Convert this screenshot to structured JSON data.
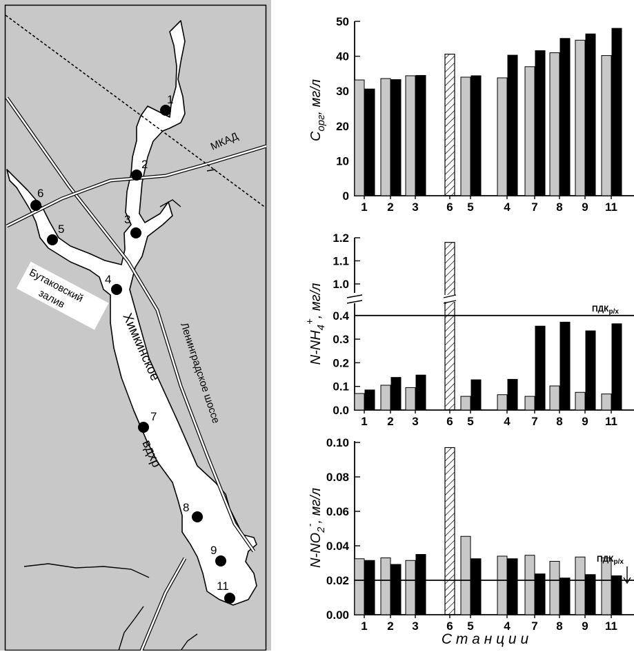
{
  "colors": {
    "grey_series": "#c8c8c8",
    "black_series": "#000000",
    "map_land": "#c8c8c8",
    "water": "#ffffff",
    "frame_border": "#4a6fa5"
  },
  "map": {
    "stations": [
      "1",
      "2",
      "3",
      "4",
      "5",
      "6",
      "7",
      "8",
      "9",
      "11"
    ],
    "labels": {
      "mkad": "МКАД",
      "bay_line1": "Бутаковский",
      "bay_line2": "залив",
      "reservoir_line1": "Химкинское",
      "reservoir_line2": "вдхр",
      "highway": "Ленинградское шоссе"
    }
  },
  "axis_common": {
    "xlabel": "С т а н ц и и"
  },
  "chart_data": [
    {
      "type": "bar",
      "ylabel": "C орг, мг/л",
      "ylabel_main": "C",
      "ylabel_sub": "орг",
      "ylabel_unit": ", мг/л",
      "ylim": [
        0,
        50
      ],
      "yticks": [
        "0",
        "10",
        "20",
        "30",
        "40",
        "50"
      ],
      "categories": [
        "1",
        "2",
        "3",
        "6",
        "5",
        "4",
        "7",
        "8",
        "9",
        "11"
      ],
      "series": [
        {
          "values": [
            33.2,
            33.6,
            34.4,
            40.6,
            34.0,
            33.8,
            37.0,
            41.0,
            44.6,
            40.2
          ]
        },
        {
          "values": [
            30.6,
            33.3,
            34.5,
            null,
            34.4,
            40.3,
            41.6,
            45.1,
            46.4,
            48.0
          ]
        }
      ],
      "hatched_category": "6",
      "limit_label": "",
      "limit_value": null
    },
    {
      "type": "bar",
      "ylabel": "N-NH4+, мг/л",
      "ylabel_main": "N-NH",
      "ylabel_sub": "4",
      "ylabel_sup": "+",
      "ylabel_unit": ", мг/л",
      "ylim": [
        0,
        1.2
      ],
      "axis_break": [
        0.45,
        0.95
      ],
      "yticks_lower": [
        "0.0",
        "0.1",
        "0.2",
        "0.3",
        "0.4"
      ],
      "yticks_upper": [
        "1.0",
        "1.1",
        "1.2"
      ],
      "categories": [
        "1",
        "2",
        "3",
        "6",
        "5",
        "4",
        "7",
        "8",
        "9",
        "11"
      ],
      "series": [
        {
          "values": [
            0.07,
            0.105,
            0.095,
            1.18,
            0.058,
            0.065,
            0.058,
            0.102,
            0.075,
            0.068
          ]
        },
        {
          "values": [
            0.085,
            0.138,
            0.148,
            null,
            0.128,
            0.13,
            0.355,
            0.372,
            0.335,
            0.365
          ]
        }
      ],
      "hatched_category": "6",
      "limit_label": "ПДКр/х",
      "limit_main": "ПДК",
      "limit_sub": "р/х",
      "limit_value": 0.4
    },
    {
      "type": "bar",
      "ylabel": "N-NO2-, мг/л",
      "ylabel_main": "N-NO",
      "ylabel_sub": "2",
      "ylabel_sup": "-",
      "ylabel_unit": ", мг/л",
      "ylim": [
        0,
        0.1
      ],
      "yticks": [
        "0.00",
        "0.02",
        "0.04",
        "0.06",
        "0.08",
        "0.10"
      ],
      "categories": [
        "1",
        "2",
        "3",
        "6",
        "5",
        "4",
        "7",
        "8",
        "9",
        "11"
      ],
      "series": [
        {
          "values": [
            0.0325,
            0.033,
            0.0315,
            0.097,
            0.0455,
            0.034,
            0.0345,
            0.031,
            0.0335,
            0.033
          ]
        },
        {
          "values": [
            0.0315,
            0.0292,
            0.035,
            null,
            0.0325,
            0.0325,
            0.0237,
            0.0213,
            0.0233,
            0.0226
          ]
        }
      ],
      "hatched_category": "6",
      "limit_label": "ПДКр/х",
      "limit_main": "ПДК",
      "limit_sub": "р/х",
      "limit_value": 0.02
    }
  ]
}
